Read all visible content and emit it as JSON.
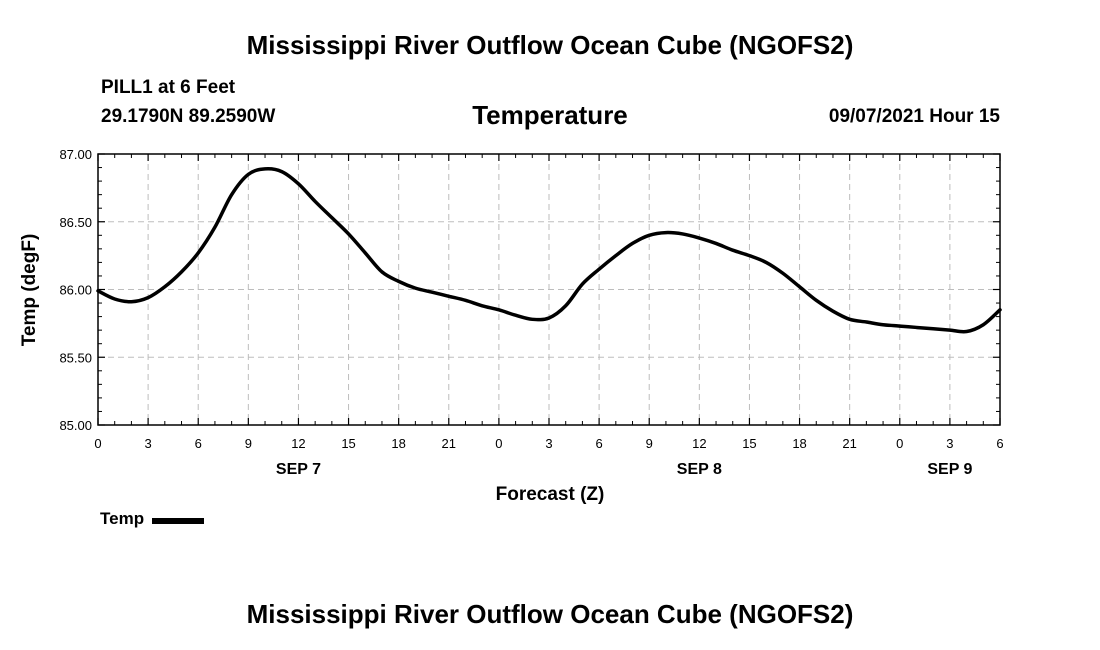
{
  "header": {
    "title": "Mississippi River Outflow Ocean Cube (NGOFS2)",
    "station": "PILL1 at 6 Feet",
    "coords": "29.1790N  89.2590W",
    "subtitle": "Temperature",
    "datetime": "09/07/2021 Hour 15"
  },
  "footer": {
    "title": "Mississippi River Outflow Ocean Cube (NGOFS2)"
  },
  "legend": {
    "label": "Temp"
  },
  "chart_data": {
    "type": "line",
    "title": "Temperature",
    "xlabel": "Forecast (Z)",
    "ylabel": "Temp (degF)",
    "xlim": [
      0,
      54
    ],
    "ylim": [
      85.0,
      87.0
    ],
    "grid": true,
    "line_color": "#000000",
    "x_ticks": [
      0,
      3,
      6,
      9,
      12,
      15,
      18,
      21,
      24,
      27,
      30,
      33,
      36,
      39,
      42,
      45,
      48,
      51,
      54
    ],
    "x_tick_labels": [
      "0",
      "3",
      "6",
      "9",
      "12",
      "15",
      "18",
      "21",
      "0",
      "3",
      "6",
      "9",
      "12",
      "15",
      "18",
      "21",
      "0",
      "3",
      "6"
    ],
    "day_labels": [
      {
        "x": 12,
        "label": "SEP 7"
      },
      {
        "x": 36,
        "label": "SEP 8"
      },
      {
        "x": 51,
        "label": "SEP 9"
      }
    ],
    "y_ticks": [
      85.0,
      85.5,
      86.0,
      86.5,
      87.0
    ],
    "y_tick_labels": [
      "85.00",
      "85.50",
      "86.00",
      "86.50",
      "87.00"
    ],
    "series": [
      {
        "name": "Temp",
        "x": [
          0,
          1,
          2,
          3,
          4,
          5,
          6,
          7,
          8,
          9,
          10,
          11,
          12,
          13,
          14,
          15,
          16,
          17,
          18,
          19,
          20,
          21,
          22,
          23,
          24,
          25,
          26,
          27,
          28,
          29,
          30,
          31,
          32,
          33,
          34,
          35,
          36,
          37,
          38,
          39,
          40,
          41,
          42,
          43,
          44,
          45,
          46,
          47,
          48,
          49,
          50,
          51,
          52,
          53,
          54
        ],
        "values": [
          85.99,
          85.93,
          85.91,
          85.94,
          86.02,
          86.13,
          86.27,
          86.46,
          86.7,
          86.85,
          86.89,
          86.87,
          86.78,
          86.65,
          86.53,
          86.41,
          86.27,
          86.13,
          86.06,
          86.01,
          85.98,
          85.95,
          85.92,
          85.88,
          85.85,
          85.81,
          85.78,
          85.79,
          85.88,
          86.04,
          86.15,
          86.25,
          86.34,
          86.4,
          86.42,
          86.41,
          86.38,
          86.34,
          86.29,
          86.25,
          86.2,
          86.12,
          86.02,
          85.92,
          85.84,
          85.78,
          85.76,
          85.74,
          85.73,
          85.72,
          85.71,
          85.7,
          85.69,
          85.74,
          85.85
        ]
      }
    ]
  }
}
